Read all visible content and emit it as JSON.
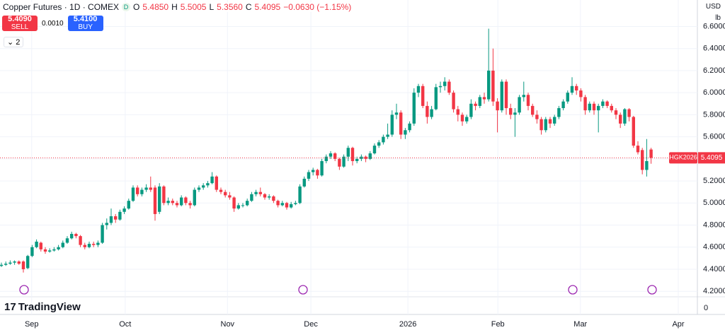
{
  "header": {
    "title": "Copper Futures · 1D · COMEX",
    "badge": "D",
    "open_label": "O",
    "open": "5.4850",
    "high_label": "H",
    "high": "5.5005",
    "low_label": "L",
    "low": "5.3560",
    "close_label": "C",
    "close": "5.4095",
    "change": "−0.0630 (−1.15%)"
  },
  "trade": {
    "sell_price": "5.4090",
    "sell": "SELL",
    "spread": "0.0010",
    "buy_price": "5.4100",
    "buy": "BUY"
  },
  "indicators_count": "2",
  "scale": {
    "currency": "USD",
    "unit": "lb"
  },
  "logo": "TradingView",
  "chart_data": {
    "type": "candlestick",
    "up_color": "#089981",
    "down_color": "#f23645",
    "grid": true,
    "symbol_tag": "HGK2026",
    "last_price": 5.4095,
    "volume_scale_label": "0",
    "ylim": [
      3.99,
      6.84
    ],
    "yticks": [
      {
        "value": 4.2,
        "label": "4.2000"
      },
      {
        "value": 4.4,
        "label": "4.4000"
      },
      {
        "value": 4.6,
        "label": "4.6000"
      },
      {
        "value": 4.8,
        "label": "4.8000"
      },
      {
        "value": 5.0,
        "label": "5.0000"
      },
      {
        "value": 5.2,
        "label": "5.2000"
      },
      {
        "value": 5.4,
        "label": "5.4000"
      },
      {
        "value": 5.6,
        "label": "5.6000"
      },
      {
        "value": 5.8,
        "label": "5.8000"
      },
      {
        "value": 6.0,
        "label": "6.0000"
      },
      {
        "value": 6.2,
        "label": "6.2000"
      },
      {
        "value": 6.4,
        "label": "6.4000"
      },
      {
        "value": 6.6,
        "label": "6.6000"
      }
    ],
    "xlim": [
      -0.32,
      158.55
    ],
    "xticks": [
      {
        "value": 6.9,
        "label": "Sep"
      },
      {
        "value": 28.2,
        "label": "Oct"
      },
      {
        "value": 51.5,
        "label": "Nov"
      },
      {
        "value": 70.5,
        "label": "Dec"
      },
      {
        "value": 92.6,
        "label": "2026"
      },
      {
        "value": 113.1,
        "label": "Feb"
      },
      {
        "value": 131.9,
        "label": "Mar"
      },
      {
        "value": 154.2,
        "label": "Apr"
      }
    ],
    "candles": [
      [
        4.43,
        4.46,
        4.42,
        4.44
      ],
      [
        4.44,
        4.47,
        4.43,
        4.45
      ],
      [
        4.45,
        4.48,
        4.44,
        4.46
      ],
      [
        4.46,
        4.48,
        4.44,
        4.47
      ],
      [
        4.47,
        4.48,
        4.44,
        4.45
      ],
      [
        4.47,
        4.48,
        4.37,
        4.4
      ],
      [
        4.41,
        4.53,
        4.4,
        4.52
      ],
      [
        4.52,
        4.62,
        4.51,
        4.6
      ],
      [
        4.6,
        4.67,
        4.59,
        4.65
      ],
      [
        4.64,
        4.65,
        4.56,
        4.58
      ],
      [
        4.58,
        4.6,
        4.54,
        4.56
      ],
      [
        4.56,
        4.59,
        4.55,
        4.57
      ],
      [
        4.57,
        4.6,
        4.56,
        4.58
      ],
      [
        4.58,
        4.62,
        4.57,
        4.6
      ],
      [
        4.6,
        4.66,
        4.59,
        4.64
      ],
      [
        4.64,
        4.7,
        4.63,
        4.68
      ],
      [
        4.68,
        4.74,
        4.67,
        4.72
      ],
      [
        4.72,
        4.73,
        4.68,
        4.7
      ],
      [
        4.7,
        4.71,
        4.6,
        4.62
      ],
      [
        4.62,
        4.64,
        4.58,
        4.6
      ],
      [
        4.6,
        4.65,
        4.59,
        4.63
      ],
      [
        4.63,
        4.65,
        4.6,
        4.62
      ],
      [
        4.62,
        4.66,
        4.6,
        4.64
      ],
      [
        4.64,
        4.82,
        4.63,
        4.8
      ],
      [
        4.8,
        4.86,
        4.76,
        4.82
      ],
      [
        4.82,
        4.95,
        4.8,
        4.88
      ],
      [
        4.88,
        4.9,
        4.82,
        4.85
      ],
      [
        4.85,
        4.94,
        4.84,
        4.92
      ],
      [
        4.92,
        4.97,
        4.9,
        4.95
      ],
      [
        4.95,
        5.04,
        4.94,
        5.02
      ],
      [
        5.02,
        5.16,
        5.01,
        5.14
      ],
      [
        5.14,
        5.16,
        5.06,
        5.08
      ],
      [
        5.08,
        5.14,
        5.06,
        5.12
      ],
      [
        5.12,
        5.17,
        5.1,
        5.14
      ],
      [
        5.14,
        5.24,
        5.1,
        5.12
      ],
      [
        5.14,
        5.16,
        4.84,
        4.9
      ],
      [
        4.92,
        5.18,
        4.9,
        5.15
      ],
      [
        5.15,
        5.16,
        4.98,
        5.0
      ],
      [
        5.0,
        5.05,
        4.98,
        5.02
      ],
      [
        5.02,
        5.04,
        4.98,
        5.0
      ],
      [
        5.0,
        5.02,
        4.96,
        4.98
      ],
      [
        4.98,
        5.07,
        4.97,
        5.05
      ],
      [
        5.05,
        5.06,
        4.98,
        5.0
      ],
      [
        5.0,
        5.02,
        4.95,
        4.98
      ],
      [
        4.98,
        5.14,
        4.97,
        5.12
      ],
      [
        5.12,
        5.16,
        5.1,
        5.14
      ],
      [
        5.14,
        5.18,
        5.12,
        5.16
      ],
      [
        5.16,
        5.2,
        5.14,
        5.18
      ],
      [
        5.18,
        5.28,
        5.17,
        5.24
      ],
      [
        5.24,
        5.25,
        5.1,
        5.12
      ],
      [
        5.12,
        5.14,
        5.08,
        5.1
      ],
      [
        5.1,
        5.12,
        5.05,
        5.07
      ],
      [
        5.07,
        5.1,
        5.03,
        5.05
      ],
      [
        5.05,
        5.06,
        4.92,
        4.95
      ],
      [
        4.95,
        5.0,
        4.94,
        4.98
      ],
      [
        4.98,
        5.0,
        4.96,
        4.98
      ],
      [
        4.98,
        5.04,
        4.97,
        5.02
      ],
      [
        5.02,
        5.1,
        5.01,
        5.08
      ],
      [
        5.08,
        5.12,
        5.06,
        5.1
      ],
      [
        5.1,
        5.14,
        5.06,
        5.08
      ],
      [
        5.08,
        5.09,
        5.03,
        5.05
      ],
      [
        5.05,
        5.08,
        5.03,
        5.06
      ],
      [
        5.06,
        5.07,
        5.0,
        5.02
      ],
      [
        5.02,
        5.03,
        4.96,
        4.98
      ],
      [
        4.98,
        5.02,
        4.97,
        5.0
      ],
      [
        5.0,
        5.01,
        4.94,
        4.96
      ],
      [
        4.96,
        5.01,
        4.95,
        4.99
      ],
      [
        4.99,
        5.02,
        4.98,
        5.0
      ],
      [
        5.0,
        5.17,
        4.99,
        5.15
      ],
      [
        5.15,
        5.24,
        5.14,
        5.22
      ],
      [
        5.22,
        5.3,
        5.2,
        5.28
      ],
      [
        5.28,
        5.32,
        5.25,
        5.3
      ],
      [
        5.3,
        5.31,
        5.22,
        5.25
      ],
      [
        5.25,
        5.4,
        5.24,
        5.38
      ],
      [
        5.38,
        5.44,
        5.36,
        5.42
      ],
      [
        5.42,
        5.47,
        5.4,
        5.45
      ],
      [
        5.45,
        5.46,
        5.38,
        5.4
      ],
      [
        5.4,
        5.41,
        5.3,
        5.33
      ],
      [
        5.33,
        5.44,
        5.32,
        5.42
      ],
      [
        5.42,
        5.52,
        5.38,
        5.5
      ],
      [
        5.5,
        5.51,
        5.34,
        5.38
      ],
      [
        5.38,
        5.42,
        5.36,
        5.4
      ],
      [
        5.4,
        5.44,
        5.38,
        5.42
      ],
      [
        5.42,
        5.43,
        5.37,
        5.4
      ],
      [
        5.4,
        5.47,
        5.39,
        5.45
      ],
      [
        5.45,
        5.54,
        5.44,
        5.52
      ],
      [
        5.52,
        5.57,
        5.5,
        5.55
      ],
      [
        5.55,
        5.62,
        5.53,
        5.6
      ],
      [
        5.6,
        5.72,
        5.58,
        5.62
      ],
      [
        5.62,
        5.84,
        5.6,
        5.8
      ],
      [
        5.8,
        5.9,
        5.76,
        5.82
      ],
      [
        5.82,
        5.84,
        5.58,
        5.62
      ],
      [
        5.62,
        5.68,
        5.58,
        5.66
      ],
      [
        5.66,
        5.74,
        5.64,
        5.72
      ],
      [
        5.72,
        6.04,
        5.7,
        6.0
      ],
      [
        6.0,
        6.08,
        5.96,
        6.06
      ],
      [
        6.06,
        6.08,
        5.86,
        5.88
      ],
      [
        5.88,
        5.92,
        5.72,
        5.78
      ],
      [
        5.78,
        5.88,
        5.76,
        5.85
      ],
      [
        5.85,
        6.08,
        5.84,
        6.05
      ],
      [
        6.05,
        6.1,
        6.0,
        6.06
      ],
      [
        6.06,
        6.14,
        6.02,
        6.1
      ],
      [
        6.1,
        6.12,
        5.98,
        6.0
      ],
      [
        6.0,
        6.02,
        5.82,
        5.85
      ],
      [
        5.85,
        5.88,
        5.74,
        5.8
      ],
      [
        5.8,
        5.82,
        5.7,
        5.74
      ],
      [
        5.74,
        5.8,
        5.72,
        5.78
      ],
      [
        5.78,
        5.94,
        5.76,
        5.9
      ],
      [
        5.9,
        5.92,
        5.84,
        5.88
      ],
      [
        5.88,
        5.98,
        5.86,
        5.96
      ],
      [
        5.96,
        6.0,
        5.9,
        5.94
      ],
      [
        5.94,
        6.58,
        5.92,
        6.2
      ],
      [
        6.2,
        6.4,
        5.88,
        5.92
      ],
      [
        5.92,
        5.95,
        5.64,
        5.84
      ],
      [
        5.84,
        6.12,
        5.82,
        6.1
      ],
      [
        6.1,
        6.12,
        5.8,
        5.86
      ],
      [
        5.86,
        5.9,
        5.76,
        5.8
      ],
      [
        5.8,
        5.86,
        5.6,
        5.82
      ],
      [
        5.82,
        5.98,
        5.8,
        5.96
      ],
      [
        5.96,
        6.1,
        5.92,
        5.98
      ],
      [
        5.98,
        6.0,
        5.84,
        5.88
      ],
      [
        5.88,
        5.9,
        5.78,
        5.8
      ],
      [
        5.8,
        5.84,
        5.72,
        5.76
      ],
      [
        5.76,
        5.78,
        5.62,
        5.66
      ],
      [
        5.66,
        5.78,
        5.64,
        5.76
      ],
      [
        5.76,
        5.78,
        5.68,
        5.72
      ],
      [
        5.72,
        5.8,
        5.7,
        5.78
      ],
      [
        5.78,
        5.88,
        5.76,
        5.86
      ],
      [
        5.86,
        5.94,
        5.84,
        5.92
      ],
      [
        5.92,
        6.02,
        5.9,
        6.0
      ],
      [
        6.0,
        6.14,
        5.98,
        6.06
      ],
      [
        6.06,
        6.08,
        5.98,
        6.02
      ],
      [
        6.02,
        6.04,
        5.92,
        5.96
      ],
      [
        5.96,
        5.98,
        5.8,
        5.84
      ],
      [
        5.84,
        5.92,
        5.82,
        5.9
      ],
      [
        5.9,
        5.92,
        5.8,
        5.84
      ],
      [
        5.84,
        5.9,
        5.64,
        5.88
      ],
      [
        5.88,
        5.94,
        5.86,
        5.92
      ],
      [
        5.92,
        5.93,
        5.86,
        5.88
      ],
      [
        5.88,
        5.9,
        5.82,
        5.84
      ],
      [
        5.84,
        5.86,
        5.76,
        5.8
      ],
      [
        5.8,
        5.82,
        5.68,
        5.72
      ],
      [
        5.72,
        5.86,
        5.7,
        5.85
      ],
      [
        5.85,
        5.86,
        5.74,
        5.78
      ],
      [
        5.78,
        5.79,
        5.5,
        5.52
      ],
      [
        5.52,
        5.56,
        5.44,
        5.46
      ],
      [
        5.48,
        5.5,
        5.26,
        5.3
      ],
      [
        5.3,
        5.58,
        5.24,
        5.38
      ],
      [
        5.485,
        5.5005,
        5.356,
        5.4095
      ]
    ]
  }
}
